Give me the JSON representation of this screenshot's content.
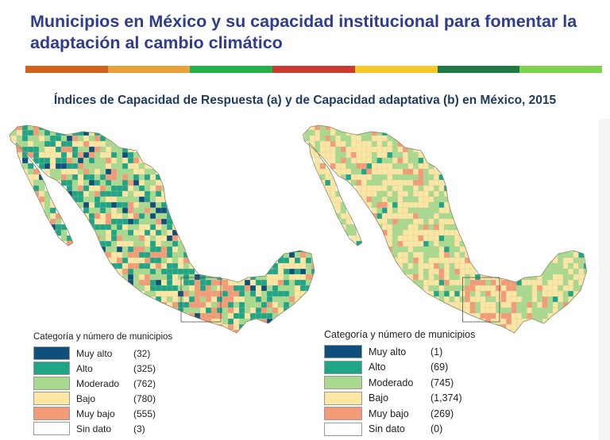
{
  "header": {
    "title_line1": "Municipios en México y su capacidad institucional para fomentar la",
    "title_line2": "adaptación al cambio climático",
    "stripe_colors": [
      "#d2611b",
      "#eaa13a",
      "#22b14c",
      "#cc3b32",
      "#f5c928",
      "#1e7a42",
      "#7dd34c"
    ]
  },
  "subtitle": "Índices de Capacidad de Respuesta (a) y de Capacidad adaptativa (b) en México, 2015",
  "palette": {
    "muy_alto": "#0e4f7c",
    "alto": "#1ea585",
    "moderado": "#a7d98f",
    "bajo": "#fbe6a4",
    "muy_bajo": "#f59a76",
    "sin_dato": "#ffffff"
  },
  "legend_a": {
    "title": "Categoría y número de municipios",
    "items": [
      {
        "label": "Muy alto",
        "count": "(32)",
        "color": "#0e4f7c"
      },
      {
        "label": "Alto",
        "count": "(325)",
        "color": "#1ea585"
      },
      {
        "label": "Moderado",
        "count": "(762)",
        "color": "#a7d98f"
      },
      {
        "label": "Bajo",
        "count": "(780)",
        "color": "#fbe6a4"
      },
      {
        "label": "Muy bajo",
        "count": "(555)",
        "color": "#f59a76"
      },
      {
        "label": "Sin dato",
        "count": "(3)",
        "color": "#ffffff"
      }
    ]
  },
  "legend_b": {
    "title": "Categoría y número de municipios",
    "items": [
      {
        "label": "Muy alto",
        "count": "(1)",
        "color": "#0e4f7c"
      },
      {
        "label": "Alto",
        "count": "(69)",
        "color": "#1ea585"
      },
      {
        "label": "Moderado",
        "count": "(745)",
        "color": "#a7d98f"
      },
      {
        "label": "Bajo",
        "count": "(1,374)",
        "color": "#fbe6a4"
      },
      {
        "label": "Muy bajo",
        "count": "(269)",
        "color": "#f59a76"
      },
      {
        "label": "Sin dato",
        "count": "(0)",
        "color": "#ffffff"
      }
    ]
  },
  "map_a": {
    "category_mix": [
      0.05,
      0.26,
      0.3,
      0.27,
      0.12
    ]
  },
  "map_b": {
    "category_mix": [
      0.0,
      0.04,
      0.38,
      0.5,
      0.08
    ]
  }
}
